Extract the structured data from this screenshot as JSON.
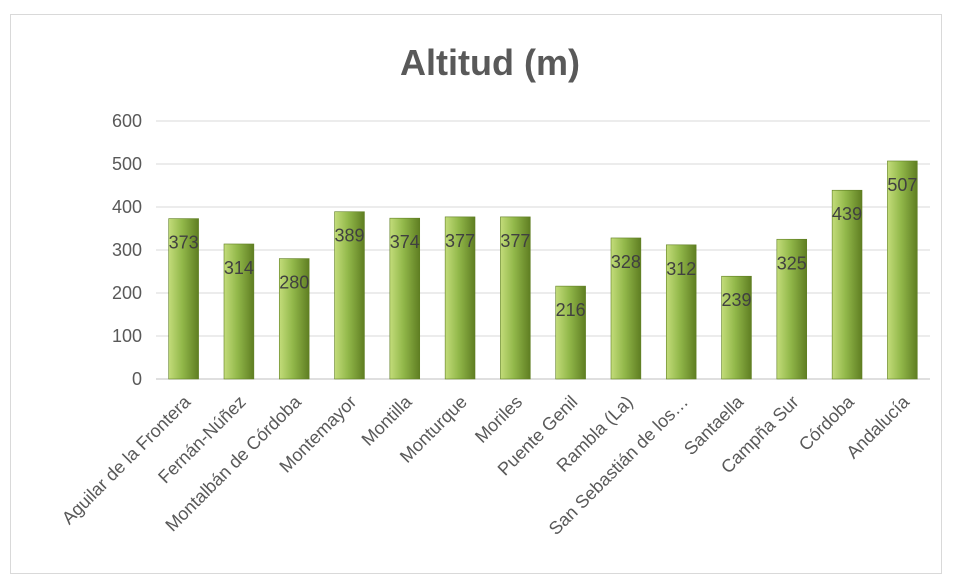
{
  "chart_data": {
    "type": "bar",
    "title": "Altitud (m)",
    "xlabel": "",
    "ylabel": "",
    "categories": [
      "Aguilar de la Frontera",
      "Fernán-Núñez",
      "Montalbán de Córdoba",
      "Montemayor",
      "Montilla",
      "Monturque",
      "Moriles",
      "Puente Genil",
      "Rambla (La)",
      "San Sebastián de los…",
      "Santaella",
      "Campña Sur",
      "Córdoba",
      "Andalucía"
    ],
    "values": [
      373,
      314,
      280,
      389,
      374,
      377,
      377,
      216,
      328,
      312,
      239,
      325,
      439,
      507
    ],
    "ylim": [
      0,
      600
    ],
    "yticks": [
      0,
      100,
      200,
      300,
      400,
      500,
      600
    ],
    "grid": true,
    "legend": "none",
    "data_labels": true,
    "colors": {
      "bar_light": "#c3dc7a",
      "bar_mid": "#92b84a",
      "bar_dark": "#5f7e22",
      "grid": "#d9d9d9",
      "axis": "#bfbfbf"
    }
  }
}
